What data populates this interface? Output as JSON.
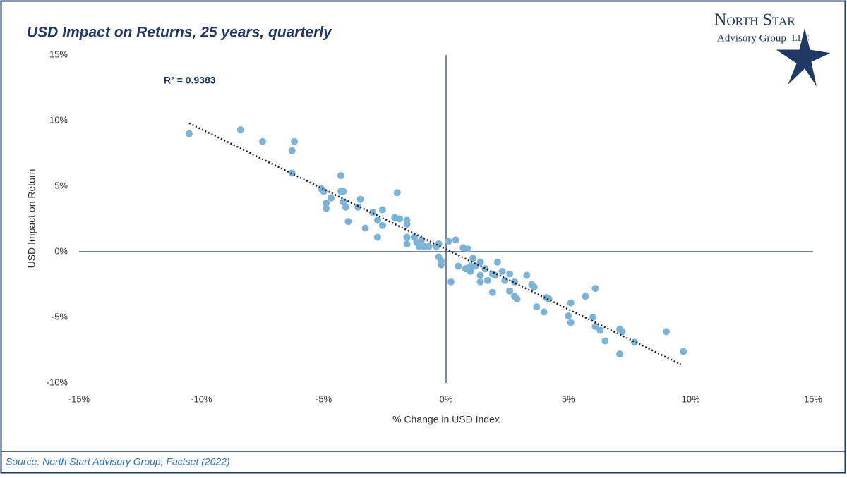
{
  "chart_data": {
    "type": "scatter",
    "title": "USD Impact on Returns, 25 years, quarterly",
    "x_label": "% Change in USD Index",
    "y_label": "USD Impact on Return",
    "annotation": "R² = 0.9383",
    "color": "#7db3d6",
    "trendline": {
      "x": [
        -10.5,
        9.6
      ],
      "y": [
        9.8,
        -8.6
      ],
      "color": "#1a1a2e"
    },
    "x": [
      -10.5,
      -8.4,
      -7.5,
      -6.3,
      -6.2,
      -6.3,
      -4.3,
      -5.1,
      -5.0,
      -4.9,
      -4.9,
      -4.7,
      -4.3,
      -4.2,
      -4.2,
      -4.1,
      -4.0,
      -3.5,
      -3.6,
      -3.3,
      -3.0,
      -2.8,
      -2.6,
      -2.6,
      -2.8,
      -2.0,
      -2.1,
      -1.9,
      -1.6,
      -1.6,
      -1.6,
      -1.6,
      -1.3,
      -1.2,
      -1.1,
      -1.0,
      -0.9,
      -0.7,
      -0.4,
      -0.3,
      -0.3,
      -0.2,
      -0.2,
      0.1,
      0.4,
      0.2,
      0.5,
      0.7,
      0.9,
      0.8,
      1.0,
      1.0,
      1.1,
      1.2,
      1.4,
      1.4,
      1.4,
      1.6,
      1.7,
      1.9,
      1.9,
      2.0,
      2.1,
      2.3,
      2.4,
      2.6,
      2.6,
      2.8,
      2.8,
      2.9,
      3.3,
      3.5,
      3.6,
      3.7,
      4.0,
      4.2,
      4.1,
      5.1,
      5.0,
      5.1,
      5.7,
      6.1,
      6.0,
      6.1,
      6.3,
      6.5,
      7.1,
      7.2,
      7.1,
      7.7,
      9.0,
      9.7
    ],
    "values": [
      9.0,
      9.3,
      8.4,
      7.7,
      8.4,
      6.0,
      5.8,
      4.8,
      4.6,
      3.7,
      3.3,
      4.1,
      4.6,
      4.6,
      3.8,
      3.4,
      2.3,
      4.0,
      3.4,
      1.8,
      3.0,
      1.1,
      3.2,
      2.0,
      2.4,
      4.5,
      2.6,
      2.5,
      2.4,
      2.1,
      1.1,
      0.6,
      1.1,
      0.7,
      0.4,
      0.9,
      0.4,
      0.4,
      0.4,
      0.6,
      -0.4,
      -1.0,
      -0.7,
      0.8,
      0.9,
      -2.3,
      -1.1,
      0.3,
      0.2,
      -1.3,
      -1.1,
      -1.5,
      -0.5,
      -1.1,
      -0.8,
      -1.8,
      -2.3,
      -1.3,
      -2.2,
      -3.1,
      -1.7,
      -1.8,
      -0.8,
      -1.5,
      -2.2,
      -1.7,
      -3.0,
      -2.3,
      -3.4,
      -3.6,
      -1.8,
      -2.5,
      -2.7,
      -4.2,
      -4.6,
      -3.6,
      -3.5,
      -3.9,
      -4.9,
      -5.4,
      -3.4,
      -2.8,
      -5.0,
      -5.7,
      -6.0,
      -6.8,
      -5.9,
      -6.1,
      -7.8,
      -6.9,
      -6.1,
      -7.6
    ],
    "xlim": [
      -15,
      15
    ],
    "ylim": [
      -10,
      15
    ],
    "xticks": [
      {
        "value": -15,
        "label": "-15%"
      },
      {
        "value": -10,
        "label": "-10%"
      },
      {
        "value": -5,
        "label": "-5%"
      },
      {
        "value": 0,
        "label": "0%"
      },
      {
        "value": 5,
        "label": "5%"
      },
      {
        "value": 10,
        "label": "10%"
      },
      {
        "value": 15,
        "label": "15%"
      }
    ],
    "yticks": [
      {
        "value": -10,
        "label": "-10%"
      },
      {
        "value": -5,
        "label": "-5%"
      },
      {
        "value": 0,
        "label": "0%"
      },
      {
        "value": 5,
        "label": "5%"
      },
      {
        "value": 10,
        "label": "10%"
      },
      {
        "value": 15,
        "label": "15%"
      }
    ]
  },
  "logo": {
    "line1": "North Star",
    "line2": "Advisory Group",
    "line3": "LLC"
  },
  "source": "Source: North Start Advisory Group, Factset (2022)"
}
